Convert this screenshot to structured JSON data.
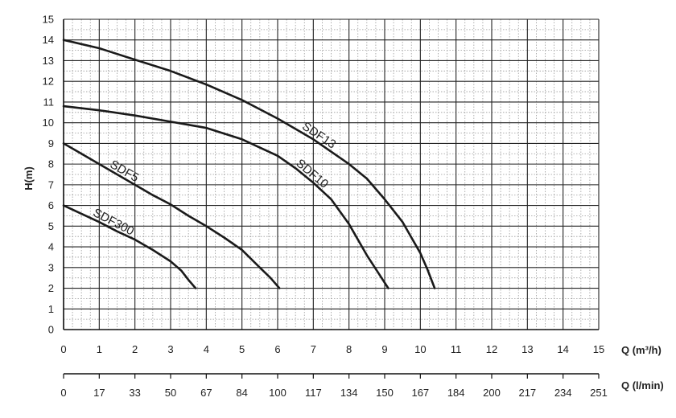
{
  "chart_data": {
    "type": "line",
    "title": "",
    "ylabel": "H(m)",
    "xlabel": "Q (m³/h)",
    "x2label": "Q (l/min)",
    "xlim": [
      0,
      15
    ],
    "ylim": [
      0,
      15
    ],
    "x_ticks": [
      "0",
      "1",
      "2",
      "3",
      "4",
      "5",
      "6",
      "7",
      "8",
      "9",
      "10",
      "11",
      "12",
      "13",
      "14",
      "15"
    ],
    "y_ticks": [
      "0",
      "1",
      "2",
      "3",
      "4",
      "5",
      "6",
      "7",
      "8",
      "9",
      "10",
      "11",
      "12",
      "13",
      "14",
      "15"
    ],
    "x2_ticks": [
      "0",
      "17",
      "33",
      "50",
      "67",
      "84",
      "100",
      "117",
      "134",
      "150",
      "167",
      "184",
      "200",
      "217",
      "234",
      "251"
    ],
    "grid": true,
    "minor_grid": true,
    "series": [
      {
        "name": "SDF300",
        "x": [
          0,
          0.5,
          1,
          1.5,
          2,
          2.5,
          3,
          3.3,
          3.5,
          3.7
        ],
        "y": [
          6,
          5.6,
          5.2,
          4.75,
          4.35,
          3.85,
          3.3,
          2.85,
          2.4,
          2.0
        ]
      },
      {
        "name": "SDF5",
        "x": [
          0,
          0.5,
          1,
          1.5,
          2,
          2.5,
          3,
          3.5,
          4,
          4.5,
          5,
          5.5,
          5.8,
          6.05
        ],
        "y": [
          9,
          8.5,
          8.0,
          7.5,
          7.0,
          6.5,
          6.05,
          5.5,
          5.0,
          4.45,
          3.85,
          3.0,
          2.5,
          2.0
        ]
      },
      {
        "name": "SDF10",
        "x": [
          0,
          1,
          2,
          3,
          4,
          5,
          6,
          6.5,
          7,
          7.5,
          8,
          8.5,
          8.8,
          9.1
        ],
        "y": [
          10.8,
          10.6,
          10.35,
          10.05,
          9.75,
          9.2,
          8.4,
          7.8,
          7.1,
          6.3,
          5.1,
          3.6,
          2.8,
          2.0
        ]
      },
      {
        "name": "SDF13",
        "x": [
          0,
          1,
          2,
          3,
          4,
          5,
          6,
          7,
          8,
          8.5,
          9,
          9.5,
          10,
          10.2,
          10.4
        ],
        "y": [
          14.0,
          13.6,
          13.05,
          12.5,
          11.85,
          11.1,
          10.2,
          9.2,
          8.0,
          7.3,
          6.3,
          5.2,
          3.7,
          2.9,
          2.0
        ]
      }
    ],
    "curve_labels": [
      "SDF300",
      "SDF5",
      "SDF10",
      "SDF13"
    ]
  }
}
